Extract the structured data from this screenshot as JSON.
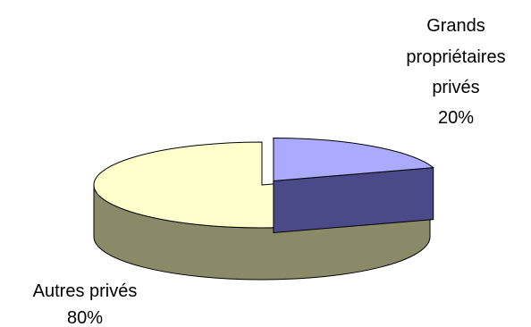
{
  "chart_data": {
    "type": "pie",
    "subtype": "3d-exploded",
    "slices": [
      {
        "name": "Grands propriétaires privés",
        "label_lines": [
          "Grands",
          "propriétaires",
          "privés"
        ],
        "value": 20,
        "value_label": "20%",
        "exploded": true,
        "color": "#aaaaff",
        "side_color": "#4a4a88"
      },
      {
        "name": "Autres privés",
        "label_lines": [
          "Autres privés"
        ],
        "value": 80,
        "value_label": "80%",
        "exploded": false,
        "color": "#ffffcc",
        "side_color": "#8a8a68"
      }
    ],
    "title": "",
    "legend": "none"
  }
}
